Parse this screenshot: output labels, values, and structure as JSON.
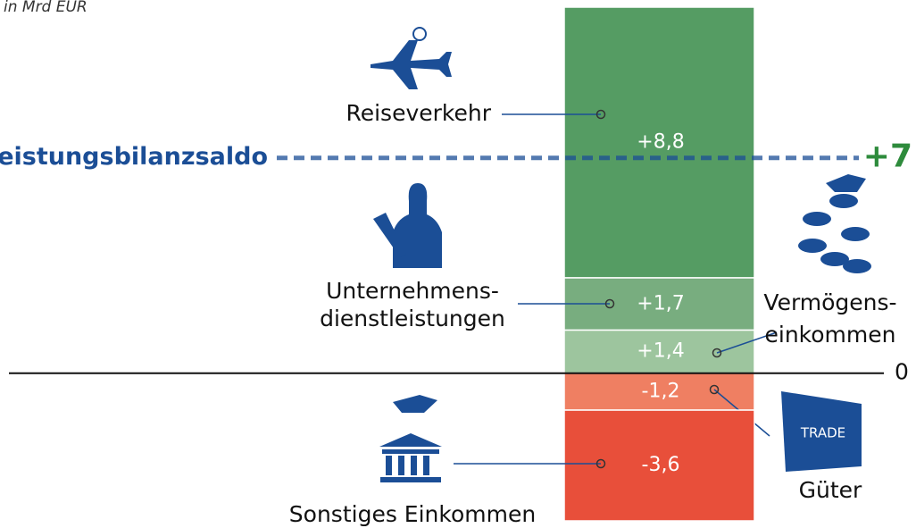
{
  "chart_data": {
    "type": "stacked_bar",
    "subtitle": "in Mrd EUR",
    "series": [
      {
        "name": [
          "Reiseverkehr"
        ],
        "values": [
          8.8
        ],
        "value_labels": [
          "+8,8"
        ],
        "color": "#559c63"
      },
      {
        "name": [
          "Unternehmens-",
          "dienstleistungen"
        ],
        "values": [
          1.7
        ],
        "value_labels": [
          "+1,7"
        ],
        "color": "#78ad7f"
      },
      {
        "name": [
          "Vermögens-",
          "einkommen"
        ],
        "values": [
          1.4
        ],
        "value_labels": [
          "+1,4"
        ],
        "color": "#9dc59e"
      },
      {
        "name": [
          "Güter"
        ],
        "values": [
          -1.2
        ],
        "value_labels": [
          "-1,2"
        ],
        "color": "#ef7f62"
      },
      {
        "name": [
          "Sonstiges Einkommen"
        ],
        "values": [
          -3.6
        ],
        "value_labels": [
          "-3,6"
        ],
        "color": "#e84f3a"
      }
    ],
    "reference": {
      "name": "Leistungsbilanzsaldo",
      "value": 7,
      "label": "+7",
      "color": "#1b4e96",
      "value_color": "#2e8b3c"
    },
    "zero_label": "0"
  }
}
